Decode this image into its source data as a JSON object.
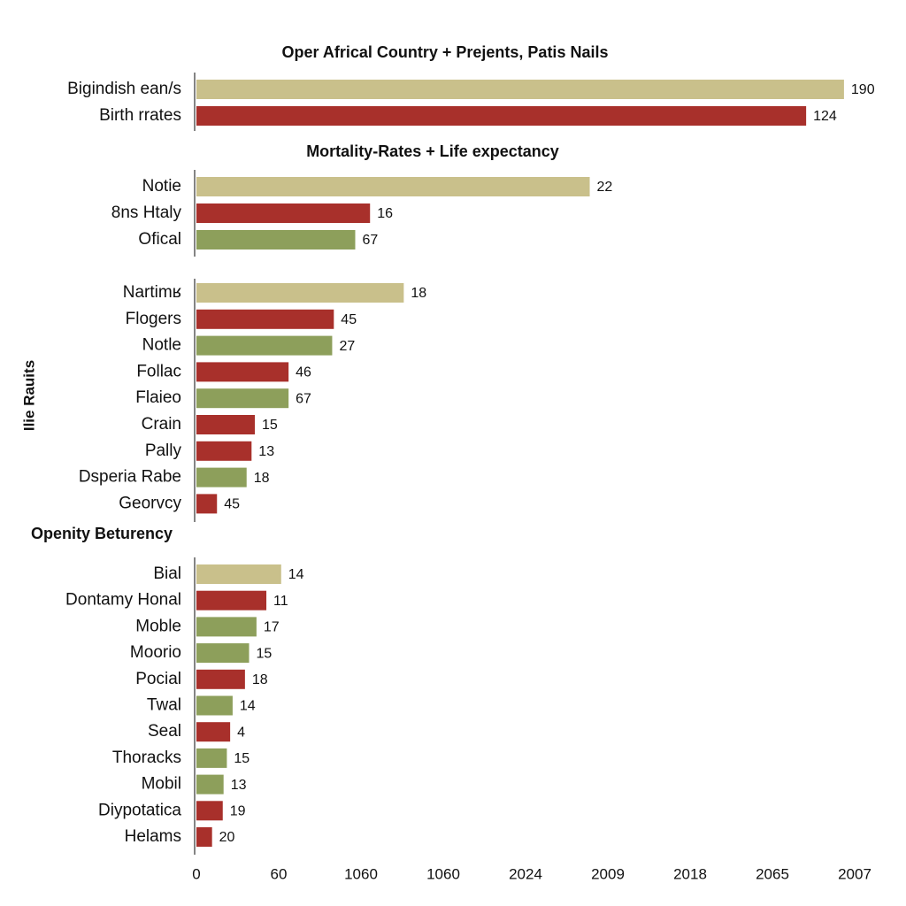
{
  "chart_data": {
    "type": "bar",
    "orientation": "horizontal",
    "ylabel": "Ilie Rauits",
    "xlim": [
      0,
      8
    ],
    "xticks": [
      {
        "value": 0,
        "label": "0"
      },
      {
        "value": 1,
        "label": "60"
      },
      {
        "value": 2,
        "label": "1060"
      },
      {
        "value": 3,
        "label": "1060"
      },
      {
        "value": 4,
        "label": "2024"
      },
      {
        "value": 5,
        "label": "2009"
      },
      {
        "value": 6,
        "label": "2018"
      },
      {
        "value": 7,
        "label": "2065"
      },
      {
        "value": 8,
        "label": "2007"
      }
    ],
    "panels": [
      {
        "title": "Oper Africal Country + Prejents, Patis Nails",
        "categories": [
          "Bigindish ean/s",
          "Birth rrates"
        ],
        "values": [
          7.87,
          7.41
        ],
        "bar_labels": [
          "190",
          "124"
        ],
        "colors": [
          "#c9c08b",
          "#a8302b"
        ]
      },
      {
        "title": "Mortality-Rates + Life expectancy",
        "categories": [
          "Notie",
          "8ns Htaly",
          "Ofical"
        ],
        "values": [
          4.78,
          2.11,
          1.93
        ],
        "bar_labels": [
          "22",
          "16",
          "67"
        ],
        "colors": [
          "#c9c08b",
          "#a8302b",
          "#8d9f5b"
        ]
      },
      {
        "categories": [
          "Nartimʁ",
          "Flogers",
          "Notle",
          "Follac",
          "Flaieo",
          "Crain",
          "Pally",
          "Dsperia Rabe",
          "Georvcy"
        ],
        "values": [
          2.52,
          1.67,
          1.65,
          1.12,
          1.12,
          0.71,
          0.67,
          0.61,
          0.25
        ],
        "bar_labels": [
          "18",
          "45",
          "27",
          "46",
          "67",
          "15",
          "13",
          "18",
          "45"
        ],
        "colors": [
          "#c9c08b",
          "#a8302b",
          "#8d9f5b",
          "#a8302b",
          "#8d9f5b",
          "#a8302b",
          "#a8302b",
          "#8d9f5b",
          "#a8302b"
        ]
      },
      {
        "title": "Openity Beturency",
        "categories": [
          "Bial",
          "Dontamy Honal",
          "Moble",
          "Moorio",
          "Pocial",
          "Twal",
          "Seal",
          "Thoracks",
          "Mobil",
          "Diypotatica",
          "Helams"
        ],
        "values": [
          1.03,
          0.85,
          0.73,
          0.64,
          0.59,
          0.44,
          0.41,
          0.37,
          0.33,
          0.32,
          0.19
        ],
        "bar_labels": [
          "14",
          "11",
          "17",
          "15",
          "18",
          "14",
          "4",
          "15",
          "13",
          "19",
          "20"
        ],
        "colors": [
          "#c9c08b",
          "#a8302b",
          "#8d9f5b",
          "#8d9f5b",
          "#a8302b",
          "#8d9f5b",
          "#a8302b",
          "#8d9f5b",
          "#8d9f5b",
          "#a8302b",
          "#a8302b"
        ]
      }
    ]
  }
}
